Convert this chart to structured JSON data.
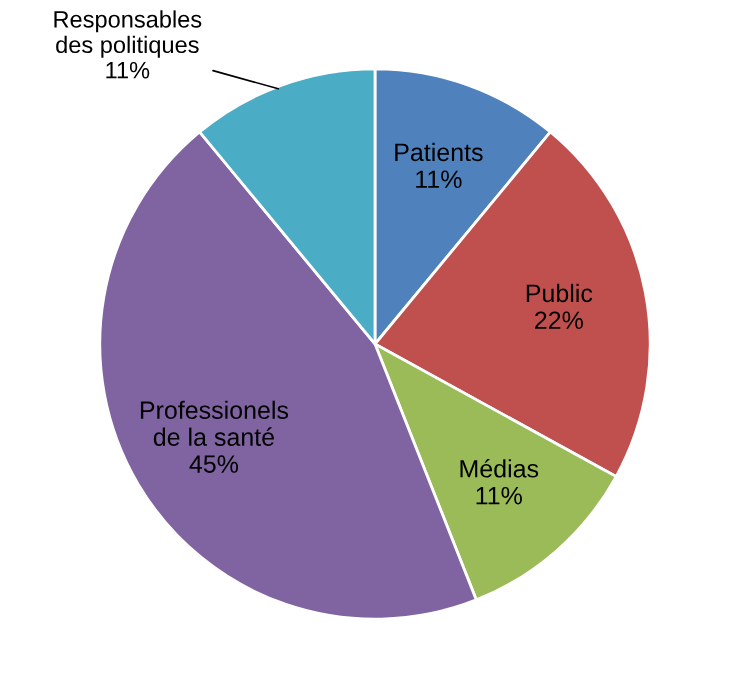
{
  "chart_data": {
    "type": "pie",
    "categories": [
      "Patients",
      "Public",
      "Médias",
      "Professionels\nde la santé",
      "Responsables\ndes politiques"
    ],
    "values": [
      11,
      22,
      11,
      45,
      11
    ],
    "value_labels": [
      "11%",
      "22%",
      "11%",
      "45%",
      "11%"
    ],
    "colors": [
      "#4f81bd",
      "#c0504d",
      "#9bbb59",
      "#8064a2",
      "#4bacc6"
    ],
    "legend": false
  }
}
